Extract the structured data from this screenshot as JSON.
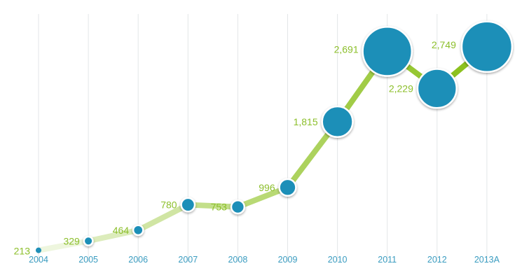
{
  "colors": {
    "line": "#8cc11f",
    "dot": "#1f8fb8",
    "dot_stroke": "#ffffff",
    "grid": "#e3e6e8",
    "year_label": "#3a9cc0",
    "value_label": "#8cbf2b"
  },
  "chart_data": {
    "type": "line",
    "categories": [
      "2004",
      "2005",
      "2006",
      "2007",
      "2008",
      "2009",
      "2010",
      "2011",
      "2012",
      "2013A"
    ],
    "values": [
      213,
      329,
      464,
      780,
      753,
      996,
      1815,
      2691,
      2229,
      2749
    ],
    "value_labels": [
      "213",
      "329",
      "464",
      "780",
      "753",
      "996",
      "1,815",
      "2,691",
      "2,229",
      "2,749"
    ],
    "title": "",
    "xlabel": "",
    "ylabel": "",
    "ylim": [
      0,
      3000
    ],
    "grid": "vertical",
    "marker_size_encodes_value": true,
    "legend": "none"
  }
}
